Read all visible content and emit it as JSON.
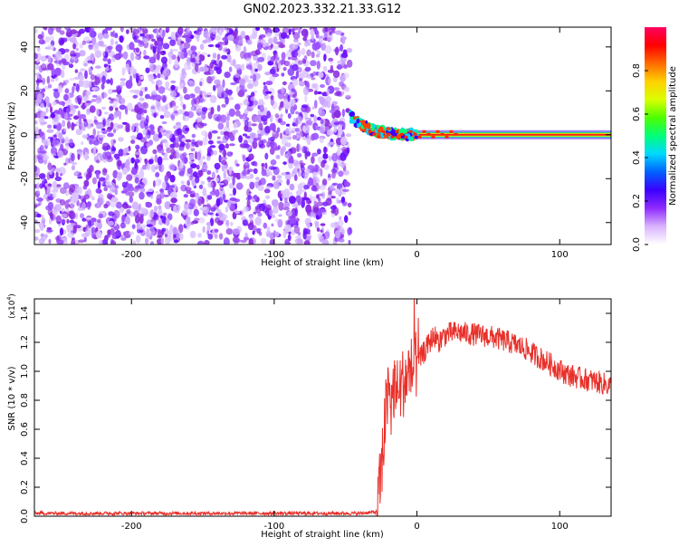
{
  "figure": {
    "title": "GN02.2023.332.21.33.G12"
  },
  "chart_data": [
    {
      "type": "heatmap",
      "xlabel": "Height of straight line (km)",
      "ylabel": "Frequency (Hz)",
      "xlim": [
        -268,
        136
      ],
      "ylim": [
        -50,
        49
      ],
      "xticks": [
        -200,
        -100,
        0,
        100
      ],
      "xtick_labels": [
        "-200",
        "-100",
        "0",
        "100"
      ],
      "yticks": [
        -40,
        -20,
        0,
        20,
        40
      ],
      "ytick_labels": [
        "-40",
        "-20",
        "0",
        "20",
        "40"
      ],
      "noise_region_x": [
        -268,
        -47
      ],
      "transition_region_x": [
        -47,
        0
      ],
      "signal_region_x": [
        0,
        136
      ],
      "signal_frequency": 0,
      "colorbar": {
        "label": "Normalized spectral amplitude",
        "range": [
          0,
          1
        ],
        "ticks": [
          0,
          0.2,
          0.4,
          0.6,
          0.8
        ],
        "tick_labels": [
          "0.0",
          "0.2",
          "0.4",
          "0.6",
          "0.8"
        ],
        "colors": [
          "#ffffff",
          "#d9b3ff",
          "#8f2bff",
          "#3b00ff",
          "#0060ff",
          "#00d8ff",
          "#00ff7a",
          "#4dff00",
          "#d9ff00",
          "#ffd000",
          "#ff6a00",
          "#ff0000",
          "#ff0060"
        ]
      },
      "colors": {
        "noise": "#7a1ff2",
        "transition": "#00d0ff",
        "signal": "#ff1a1a"
      }
    },
    {
      "type": "line",
      "xlabel": "Height of straight line (km)",
      "ylabel": "SNR (10 * v/v)",
      "yscale_label": "(x10",
      "yscale_exp": "4",
      "yscale_close": ")",
      "xlim": [
        -268,
        136
      ],
      "ylim": [
        0,
        1.5
      ],
      "xticks": [
        -200,
        -100,
        0,
        100
      ],
      "xtick_labels": [
        "-200",
        "-100",
        "0",
        "100"
      ],
      "yticks": [
        0,
        0.2,
        0.4,
        0.6,
        0.8,
        1.0,
        1.2,
        1.4
      ],
      "ytick_labels": [
        "0.0",
        "0.2",
        "0.4",
        "0.6",
        "0.8",
        "1.0",
        "1.2",
        "1.4"
      ],
      "color": "#e8302a",
      "series": [
        {
          "x": [
            -268,
            -240,
            -200,
            -160,
            -120,
            -80,
            -40,
            -28,
            -25,
            -22,
            -20,
            -18,
            -16,
            -14,
            -12,
            -10,
            -8,
            -5,
            -2,
            0,
            3,
            6,
            9,
            12,
            15,
            18,
            22,
            28,
            35,
            45,
            55,
            65,
            75,
            85,
            95,
            105,
            115,
            125,
            136
          ],
          "y": [
            0.02,
            0.02,
            0.02,
            0.02,
            0.02,
            0.02,
            0.02,
            0.03,
            0.3,
            0.7,
            0.85,
            0.8,
            0.9,
            0.85,
            0.88,
            0.92,
            0.95,
            1.0,
            1.02,
            1.05,
            1.1,
            1.15,
            1.2,
            1.25,
            1.2,
            1.24,
            1.26,
            1.27,
            1.26,
            1.25,
            1.23,
            1.2,
            1.16,
            1.1,
            1.04,
            0.98,
            0.95,
            0.93,
            0.9
          ]
        }
      ]
    }
  ]
}
